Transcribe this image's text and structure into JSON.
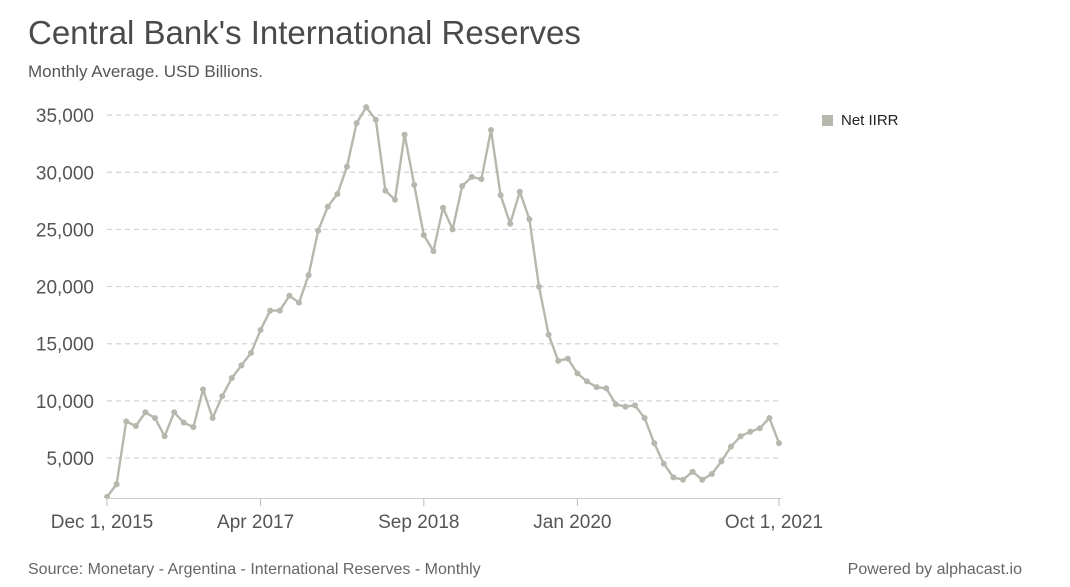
{
  "title": "Central Bank's International Reserves",
  "subtitle": "Monthly Average. USD Billions.",
  "source": "Source: Monetary - Argentina - International Reserves - Monthly",
  "powered_by": "Powered by alphacast.io",
  "chart_data": {
    "type": "line",
    "x_start": "2015-12-01",
    "x_frequency": "monthly",
    "x_ticks": [
      "Dec 1, 2015",
      "Apr 2017",
      "Sep 2018",
      "Jan 2020",
      "Oct 1, 2021"
    ],
    "ylim": [
      1500,
      36500
    ],
    "y_ticks": [
      5000,
      10000,
      15000,
      20000,
      25000,
      30000,
      35000
    ],
    "y_tick_labels": [
      "5,000",
      "10,000",
      "15,000",
      "20,000",
      "25,000",
      "30,000",
      "35,000"
    ],
    "grid": true,
    "legend_position": "top-right",
    "series": [
      {
        "name": "Net IIRR",
        "color": "#b8b7ad",
        "values": [
          1600,
          2700,
          8200,
          7800,
          9000,
          8500,
          6900,
          9000,
          8100,
          7700,
          11000,
          8500,
          10400,
          12000,
          13100,
          14200,
          16200,
          17900,
          17900,
          19200,
          18600,
          21000,
          24900,
          27000,
          28100,
          30500,
          34300,
          35700,
          34600,
          28400,
          27600,
          33300,
          28900,
          24500,
          23100,
          26900,
          25000,
          28800,
          29600,
          29400,
          33700,
          28000,
          25500,
          28300,
          25900,
          20000,
          15800,
          13500,
          13700,
          12400,
          11700,
          11200,
          11100,
          9700,
          9500,
          9600,
          8500,
          6300,
          4500,
          3300,
          3100,
          3800,
          3100,
          3600,
          4700,
          6000,
          6900,
          7300,
          7600,
          8500,
          6300
        ]
      }
    ]
  }
}
